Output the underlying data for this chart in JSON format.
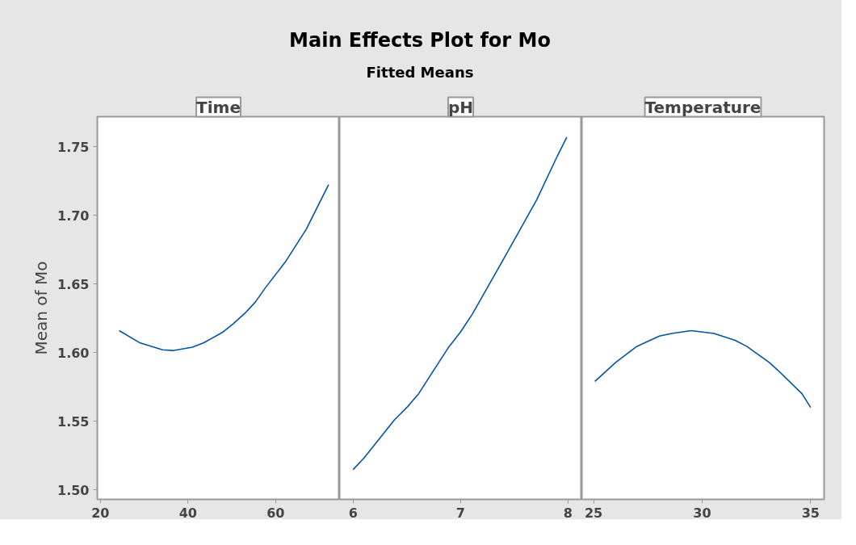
{
  "chart_data": [
    {
      "type": "line",
      "xlabel": "Time",
      "ylabel": "Mean of Mo",
      "color": "#0054a6",
      "x": [
        24.3,
        29.1,
        34.2,
        36.5,
        41,
        43.5,
        48,
        50.3,
        53.1,
        55.4,
        57.6,
        62.2,
        67,
        72.1
      ],
      "values": [
        1.616,
        1.607,
        1.602,
        1.6015,
        1.604,
        1.607,
        1.615,
        1.621,
        1.629,
        1.637,
        1.647,
        1.666,
        1.69,
        1.7225
      ],
      "xlim": [
        19.3,
        74.6
      ],
      "xticks": [
        20,
        40,
        60
      ],
      "ylim": [
        1.493,
        1.772
      ],
      "yticks": [
        {
          "value": 1.5,
          "label": "1.50"
        },
        {
          "value": 1.55,
          "label": "1.55"
        },
        {
          "value": 1.6,
          "label": "1.60"
        },
        {
          "value": 1.65,
          "label": "1.65"
        },
        {
          "value": 1.7,
          "label": "1.70"
        },
        {
          "value": 1.75,
          "label": "1.75"
        }
      ]
    },
    {
      "type": "line",
      "title": "Main Effects Plot for Mo",
      "subtitle": "Fitted Means",
      "xlabel": "pH",
      "color": "#0054a6",
      "x": [
        6.0,
        6.1,
        6.385,
        6.5,
        6.61,
        6.89,
        7.0,
        7.11,
        7.4,
        7.6,
        7.71,
        7.9,
        7.99
      ],
      "values": [
        1.5147,
        1.523,
        1.551,
        1.56,
        1.57,
        1.604,
        1.615,
        1.628,
        1.668,
        1.696,
        1.7115,
        1.743,
        1.757
      ],
      "xlim": [
        5.874,
        8.13
      ],
      "xticks": [
        6,
        7,
        8
      ],
      "ylim": [
        1.493,
        1.772
      ],
      "tick_labels": "x"
    },
    {
      "type": "line",
      "xlabel": "Temperature",
      "color": "#0054a6",
      "x": [
        25.06,
        26.03,
        27.0,
        28.03,
        28.6,
        29.5,
        30.55,
        31.52,
        32.05,
        33.08,
        33.5,
        34.6,
        35.0
      ],
      "values": [
        1.579,
        1.593,
        1.6046,
        1.612,
        1.614,
        1.616,
        1.614,
        1.609,
        1.6046,
        1.593,
        1.587,
        1.57,
        1.56
      ],
      "xlim": [
        24.46,
        35.62
      ],
      "xticks": [
        25,
        30,
        35
      ],
      "ylim": [
        1.493,
        1.772
      ],
      "tick_labels": "x"
    }
  ]
}
